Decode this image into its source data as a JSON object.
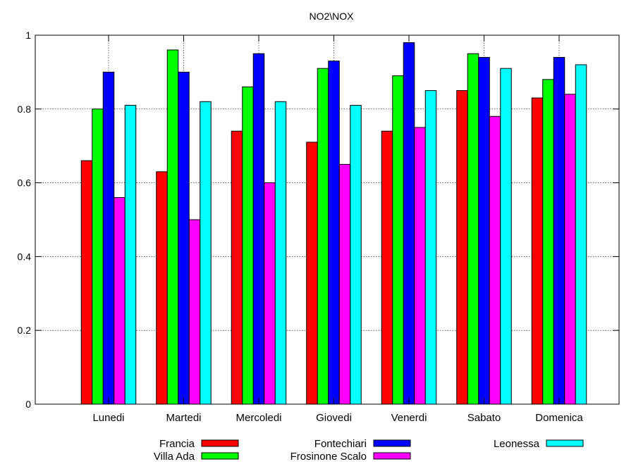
{
  "chart_data": {
    "type": "bar",
    "title": "NO2\\NOX",
    "xlabel": "",
    "ylabel": "",
    "ylim": [
      0,
      1
    ],
    "yticks": [
      0,
      0.2,
      0.4,
      0.6,
      0.8,
      1
    ],
    "ytick_labels": [
      "0",
      "0.2",
      "0.4",
      "0.6",
      "0.8",
      "1"
    ],
    "grid": true,
    "legend_position": "bottom",
    "categories": [
      "Lunedi",
      "Martedi",
      "Mercoledi",
      "Giovedi",
      "Venerdi",
      "Sabato",
      "Domenica"
    ],
    "series": [
      {
        "name": "Francia",
        "color": "#ff0000",
        "values": [
          0.66,
          0.63,
          0.74,
          0.71,
          0.74,
          0.85,
          0.83
        ]
      },
      {
        "name": "Villa Ada",
        "color": "#00ff00",
        "values": [
          0.8,
          0.96,
          0.86,
          0.91,
          0.89,
          0.95,
          0.88
        ]
      },
      {
        "name": "Fontechiari",
        "color": "#0000ff",
        "values": [
          0.9,
          0.9,
          0.95,
          0.93,
          0.98,
          0.94,
          0.94
        ]
      },
      {
        "name": "Frosinone Scalo",
        "color": "#ff00ff",
        "values": [
          0.56,
          0.5,
          0.6,
          0.65,
          0.75,
          0.78,
          0.84
        ]
      },
      {
        "name": "Leonessa",
        "color": "#00ffff",
        "values": [
          0.81,
          0.82,
          0.82,
          0.81,
          0.85,
          0.91,
          0.92
        ]
      }
    ]
  }
}
